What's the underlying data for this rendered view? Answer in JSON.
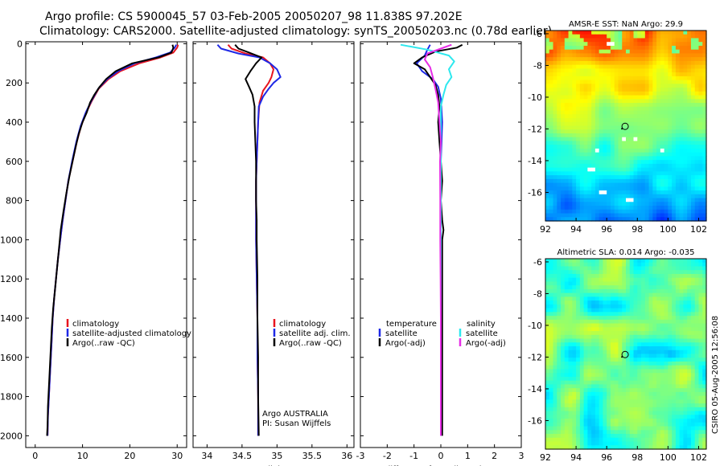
{
  "title": {
    "line1": "Argo profile: CS 5900045_57 03-Feb-2005 20050207_98 11.838S 97.202E",
    "line2": "Climatology: CARS2000. Satellite-adjusted climatology: synTS_20050203.nc (0.78d earlier)"
  },
  "side_label": "CSIRO 05-Aug-2005 12:56:08",
  "colors": {
    "red": "#e8141e",
    "blue": "#1e28e6",
    "black": "#000000",
    "cyan": "#2ee8ee",
    "magenta": "#e62ee6"
  },
  "chart_data": [
    {
      "id": "temperature",
      "type": "line",
      "xlabel": "temperature",
      "xlim": [
        -2,
        32
      ],
      "xticks": [
        0,
        10,
        20,
        30
      ],
      "ylim": [
        2060,
        -10
      ],
      "yticks": [
        0,
        200,
        400,
        600,
        800,
        1000,
        1200,
        1400,
        1600,
        1800,
        2000
      ],
      "legend": [
        "climatology",
        "satellite-adjusted climatology",
        "Argo(..raw -QC)"
      ],
      "annotations": [],
      "series": [
        {
          "name": "climatology",
          "color": "red",
          "points": [
            [
              30.2,
              5
            ],
            [
              30.0,
              20
            ],
            [
              29.2,
              45
            ],
            [
              26.5,
              70
            ],
            [
              22,
              100
            ],
            [
              18,
              140
            ],
            [
              15.5,
              180
            ],
            [
              13.4,
              230
            ],
            [
              12.0,
              290
            ],
            [
              10.8,
              350
            ],
            [
              9.7,
              420
            ],
            [
              8.8,
              500
            ],
            [
              7.9,
              600
            ],
            [
              7.0,
              700
            ],
            [
              6.4,
              800
            ],
            [
              5.8,
              900
            ],
            [
              5.3,
              1000
            ],
            [
              4.8,
              1100
            ],
            [
              4.4,
              1200
            ],
            [
              4.0,
              1300
            ],
            [
              3.7,
              1400
            ],
            [
              3.5,
              1500
            ],
            [
              3.3,
              1600
            ],
            [
              3.1,
              1700
            ],
            [
              2.9,
              1800
            ],
            [
              2.7,
              1900
            ],
            [
              2.6,
              2000
            ]
          ]
        },
        {
          "name": "satellite-adjusted climatology",
          "color": "blue",
          "points": [
            [
              29.8,
              5
            ],
            [
              29.5,
              20
            ],
            [
              28.5,
              45
            ],
            [
              25.5,
              70
            ],
            [
              21,
              100
            ],
            [
              17.5,
              140
            ],
            [
              15.2,
              180
            ],
            [
              13.3,
              230
            ],
            [
              11.9,
              290
            ],
            [
              10.7,
              350
            ],
            [
              9.6,
              420
            ],
            [
              8.7,
              500
            ],
            [
              7.8,
              600
            ],
            [
              7.0,
              700
            ],
            [
              6.4,
              800
            ],
            [
              5.8,
              900
            ],
            [
              5.3,
              1000
            ],
            [
              4.8,
              1100
            ],
            [
              4.4,
              1200
            ],
            [
              4.0,
              1300
            ],
            [
              3.7,
              1400
            ],
            [
              3.5,
              1500
            ],
            [
              3.3,
              1600
            ],
            [
              3.1,
              1700
            ],
            [
              2.9,
              1800
            ],
            [
              2.7,
              1900
            ],
            [
              2.6,
              2000
            ]
          ]
        },
        {
          "name": "Argo(..raw -QC)",
          "color": "black",
          "points": [
            [
              29.0,
              5
            ],
            [
              29.2,
              20
            ],
            [
              28.8,
              45
            ],
            [
              26.0,
              70
            ],
            [
              20.5,
              100
            ],
            [
              17.0,
              140
            ],
            [
              15.0,
              180
            ],
            [
              13.6,
              220
            ],
            [
              12.5,
              260
            ],
            [
              11.6,
              300
            ],
            [
              10.9,
              350
            ],
            [
              10.0,
              400
            ],
            [
              9.2,
              460
            ],
            [
              8.6,
              520
            ],
            [
              7.9,
              600
            ],
            [
              7.2,
              680
            ],
            [
              6.6,
              760
            ],
            [
              6.0,
              850
            ],
            [
              5.4,
              950
            ],
            [
              5.0,
              1050
            ],
            [
              4.6,
              1150
            ],
            [
              4.2,
              1250
            ],
            [
              3.8,
              1350
            ],
            [
              3.5,
              1450
            ],
            [
              3.3,
              1550
            ],
            [
              3.1,
              1650
            ],
            [
              2.9,
              1750
            ],
            [
              2.7,
              1850
            ],
            [
              2.6,
              1950
            ],
            [
              2.5,
              2000
            ]
          ]
        }
      ]
    },
    {
      "id": "salinity",
      "type": "line",
      "xlabel": "salinity",
      "xlim": [
        33.8,
        36.1
      ],
      "xticks": [
        34,
        34.5,
        35,
        35.5,
        36
      ],
      "ylim": [
        2060,
        -10
      ],
      "yticks": [
        0,
        200,
        400,
        600,
        800,
        1000,
        1200,
        1400,
        1600,
        1800,
        2000
      ],
      "legend": [
        "climatology",
        "satellite adj. clim.",
        "Argo(..raw -QC)"
      ],
      "annotations": [
        "Argo AUSTRALIA",
        "PI: Susan Wijffels"
      ],
      "series": [
        {
          "name": "climatology",
          "color": "red",
          "points": [
            [
              34.3,
              5
            ],
            [
              34.35,
              25
            ],
            [
              34.55,
              50
            ],
            [
              34.8,
              70
            ],
            [
              34.9,
              100
            ],
            [
              34.95,
              130
            ],
            [
              34.92,
              170
            ],
            [
              34.88,
              200
            ],
            [
              34.8,
              240
            ],
            [
              34.75,
              300
            ],
            [
              34.73,
              400
            ],
            [
              34.72,
              500
            ],
            [
              34.71,
              600
            ],
            [
              34.7,
              700
            ],
            [
              34.7,
              800
            ],
            [
              34.7,
              900
            ],
            [
              34.7,
              1000
            ],
            [
              34.71,
              1200
            ],
            [
              34.72,
              1400
            ],
            [
              34.72,
              1600
            ],
            [
              34.73,
              1800
            ],
            [
              34.73,
              2000
            ]
          ]
        },
        {
          "name": "satellite adj. clim.",
          "color": "blue",
          "points": [
            [
              34.15,
              5
            ],
            [
              34.2,
              25
            ],
            [
              34.45,
              50
            ],
            [
              34.75,
              70
            ],
            [
              34.9,
              100
            ],
            [
              35.0,
              130
            ],
            [
              35.05,
              170
            ],
            [
              34.95,
              200
            ],
            [
              34.88,
              230
            ],
            [
              34.8,
              270
            ],
            [
              34.74,
              320
            ],
            [
              34.73,
              400
            ],
            [
              34.72,
              500
            ],
            [
              34.71,
              600
            ],
            [
              34.7,
              700
            ],
            [
              34.7,
              800
            ],
            [
              34.7,
              900
            ],
            [
              34.7,
              1000
            ],
            [
              34.71,
              1200
            ],
            [
              34.72,
              1400
            ],
            [
              34.72,
              1600
            ],
            [
              34.73,
              1800
            ],
            [
              34.73,
              2000
            ]
          ]
        },
        {
          "name": "Argo(..raw -QC)",
          "color": "black",
          "points": [
            [
              34.4,
              5
            ],
            [
              34.45,
              25
            ],
            [
              34.6,
              45
            ],
            [
              34.78,
              70
            ],
            [
              34.7,
              100
            ],
            [
              34.62,
              140
            ],
            [
              34.55,
              180
            ],
            [
              34.6,
              220
            ],
            [
              34.65,
              260
            ],
            [
              34.68,
              320
            ],
            [
              34.68,
              400
            ],
            [
              34.69,
              500
            ],
            [
              34.7,
              600
            ],
            [
              34.7,
              700
            ],
            [
              34.7,
              800
            ],
            [
              34.71,
              900
            ],
            [
              34.71,
              1000
            ],
            [
              34.72,
              1200
            ],
            [
              34.72,
              1400
            ],
            [
              34.73,
              1600
            ],
            [
              34.73,
              1800
            ],
            [
              34.74,
              2000
            ]
          ]
        }
      ]
    },
    {
      "id": "difference",
      "type": "line",
      "xlabel": "difference from climatology",
      "xlim": [
        -3,
        3
      ],
      "xticks": [
        -3,
        -2,
        -1,
        0,
        1,
        2,
        3
      ],
      "ylim": [
        2060,
        -10
      ],
      "yticks": [
        0,
        200,
        400,
        600,
        800,
        1000,
        1200,
        1400,
        1600,
        1800,
        2000
      ],
      "legend": [
        "temperature",
        "satellite",
        "Argo(-adj)",
        "salinity",
        "satellite",
        "Argo(-adj)"
      ],
      "annotations": [],
      "series": [
        {
          "name": "temperature satellite",
          "color": "blue",
          "points": [
            [
              -0.4,
              5
            ],
            [
              -0.5,
              30
            ],
            [
              -0.6,
              60
            ],
            [
              -0.9,
              100
            ],
            [
              -0.7,
              140
            ],
            [
              -0.3,
              180
            ],
            [
              -0.1,
              220
            ],
            [
              0.0,
              280
            ],
            [
              0.05,
              400
            ],
            [
              0.0,
              600
            ],
            [
              0.0,
              800
            ],
            [
              0.0,
              1000
            ],
            [
              0.0,
              1400
            ],
            [
              0.0,
              2000
            ]
          ]
        },
        {
          "name": "temperature Argo(-adj)",
          "color": "black",
          "points": [
            [
              0.8,
              5
            ],
            [
              0.6,
              20
            ],
            [
              -0.2,
              40
            ],
            [
              -0.7,
              70
            ],
            [
              -1.0,
              100
            ],
            [
              -0.6,
              130
            ],
            [
              -0.4,
              170
            ],
            [
              -0.2,
              210
            ],
            [
              -0.1,
              260
            ],
            [
              -0.05,
              320
            ],
            [
              -0.1,
              400
            ],
            [
              -0.05,
              500
            ],
            [
              0.0,
              600
            ],
            [
              0.05,
              700
            ],
            [
              0.0,
              800
            ],
            [
              0.05,
              900
            ],
            [
              0.1,
              950
            ],
            [
              0.05,
              1000
            ],
            [
              0.05,
              1200
            ],
            [
              0.05,
              1400
            ],
            [
              0.05,
              1600
            ],
            [
              0.05,
              2000
            ]
          ]
        },
        {
          "name": "salinity satellite",
          "color": "cyan",
          "points": [
            [
              -1.5,
              5
            ],
            [
              -0.5,
              30
            ],
            [
              0.3,
              60
            ],
            [
              0.5,
              90
            ],
            [
              0.3,
              130
            ],
            [
              0.4,
              170
            ],
            [
              0.2,
              210
            ],
            [
              0.1,
              260
            ],
            [
              0.0,
              320
            ],
            [
              0.0,
              400
            ],
            [
              0.0,
              600
            ],
            [
              0.0,
              800
            ],
            [
              0.0,
              1000
            ],
            [
              0.0,
              1400
            ],
            [
              0.0,
              2000
            ]
          ]
        },
        {
          "name": "salinity Argo(-adj)",
          "color": "magenta",
          "points": [
            [
              0.4,
              5
            ],
            [
              0.0,
              25
            ],
            [
              -0.5,
              50
            ],
            [
              -0.6,
              80
            ],
            [
              -0.4,
              120
            ],
            [
              -0.3,
              170
            ],
            [
              -0.2,
              230
            ],
            [
              -0.1,
              300
            ],
            [
              -0.05,
              400
            ],
            [
              0.0,
              500
            ],
            [
              -0.03,
              600
            ],
            [
              -0.02,
              800
            ],
            [
              -0.02,
              1000
            ],
            [
              -0.01,
              1200
            ],
            [
              0.0,
              1400
            ],
            [
              0.0,
              2000
            ]
          ]
        }
      ]
    },
    {
      "id": "sst-map",
      "type": "heatmap",
      "title": "AMSR-E SST: NaN Argo: 29.9",
      "xlim": [
        92,
        102.5
      ],
      "ylim": [
        -17.8,
        -5.8
      ],
      "xticks": [
        92,
        94,
        96,
        98,
        100,
        102
      ],
      "yticks": [
        -6,
        -8,
        -10,
        -12,
        -14,
        -16
      ],
      "float_position": {
        "lon": 97.202,
        "lat": -11.838
      }
    },
    {
      "id": "sla-map",
      "type": "heatmap",
      "title": "Altimetric SLA: 0.014 Argo: -0.035",
      "xlim": [
        92,
        102.5
      ],
      "ylim": [
        -17.8,
        -5.8
      ],
      "xticks": [
        92,
        94,
        96,
        98,
        100,
        102
      ],
      "yticks": [
        -6,
        -8,
        -10,
        -12,
        -14,
        -16
      ],
      "float_position": {
        "lon": 97.202,
        "lat": -11.838
      }
    }
  ]
}
